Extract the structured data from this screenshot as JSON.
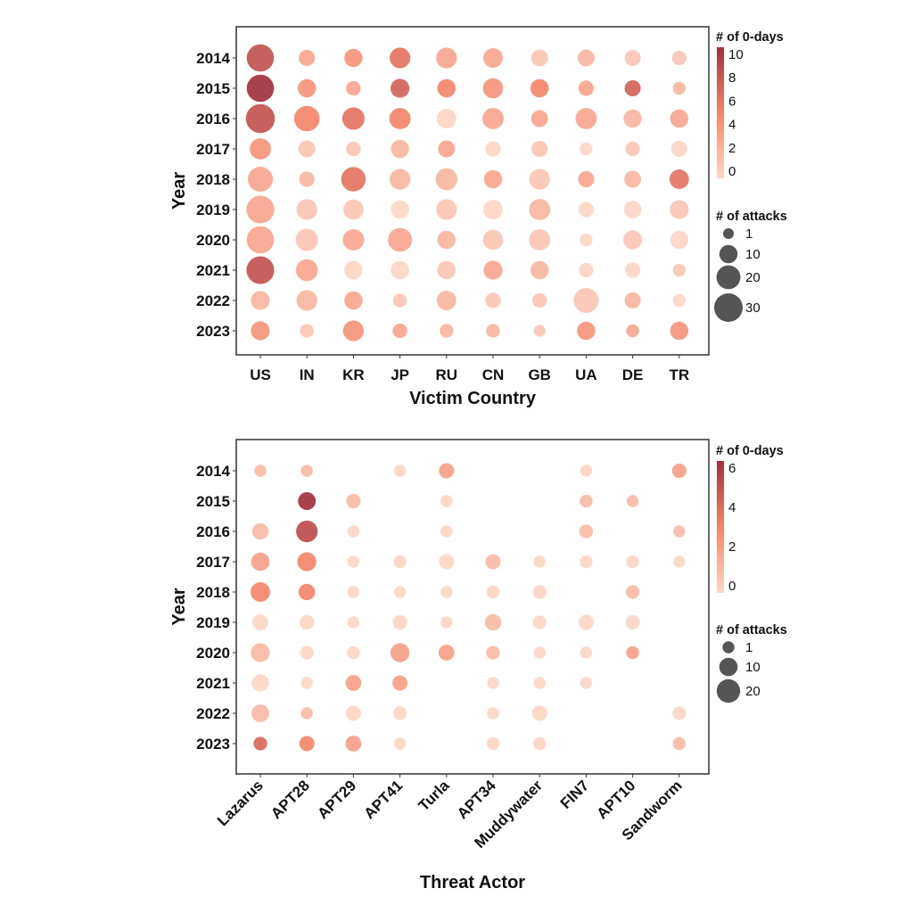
{
  "chart_data": [
    {
      "type": "scatter",
      "subtype": "bubble",
      "xlabel": "Victim Country",
      "ylabel": "Year",
      "categories": [
        "US",
        "IN",
        "KR",
        "JP",
        "RU",
        "CN",
        "GB",
        "UA",
        "DE",
        "TR"
      ],
      "years": [
        "2014",
        "2015",
        "2016",
        "2017",
        "2018",
        "2019",
        "2020",
        "2021",
        "2022",
        "2023"
      ],
      "attacks": [
        [
          27,
          7,
          10,
          14,
          14,
          12,
          8,
          8,
          7,
          5
        ],
        [
          27,
          10,
          5,
          11,
          10,
          13,
          10,
          6,
          7,
          3
        ],
        [
          31,
          23,
          17,
          15,
          12,
          15,
          8,
          15,
          10,
          10
        ],
        [
          15,
          8,
          5,
          10,
          8,
          6,
          7,
          3,
          5,
          7
        ],
        [
          22,
          6,
          21,
          14,
          16,
          10,
          14,
          7,
          8,
          12
        ],
        [
          28,
          14,
          13,
          10,
          14,
          12,
          15,
          6,
          9,
          11
        ],
        [
          27,
          17,
          15,
          20,
          10,
          13,
          15,
          3,
          11,
          10
        ],
        [
          28,
          16,
          10,
          10,
          10,
          11,
          10,
          5,
          6,
          3
        ],
        [
          11,
          14,
          10,
          4,
          12,
          6,
          5,
          22,
          7,
          3
        ],
        [
          11,
          4,
          14,
          5,
          4,
          4,
          2,
          10,
          3,
          10
        ]
      ],
      "zero_days": [
        [
          8,
          3,
          4,
          6,
          3,
          3,
          1,
          2,
          1,
          1
        ],
        [
          10,
          4,
          3,
          7,
          5,
          4,
          5,
          3,
          7,
          2
        ],
        [
          8,
          5,
          6,
          5,
          0,
          3,
          3,
          3,
          2,
          3
        ],
        [
          4,
          1,
          1,
          2,
          3,
          0,
          1,
          0,
          1,
          0
        ],
        [
          3,
          2,
          6,
          2,
          2,
          3,
          1,
          3,
          2,
          6
        ],
        [
          3,
          1,
          1,
          0,
          1,
          0,
          2,
          0,
          0,
          1
        ],
        [
          3,
          1,
          3,
          3,
          2,
          1,
          1,
          0,
          1,
          0
        ],
        [
          8,
          3,
          0,
          0,
          1,
          3,
          2,
          0,
          0,
          1
        ],
        [
          2,
          2,
          3,
          1,
          2,
          1,
          1,
          1,
          2,
          0
        ],
        [
          4,
          1,
          4,
          3,
          2,
          2,
          1,
          4,
          3,
          4
        ]
      ],
      "color_legend": {
        "title": "# of 0-days",
        "ticks": [
          "0",
          "2",
          "4",
          "6",
          "8",
          "10"
        ],
        "range": [
          0,
          10
        ]
      },
      "size_legend": {
        "title": "# of attacks",
        "values": [
          1,
          10,
          20,
          30
        ],
        "labels": [
          "1",
          "10",
          "20",
          "30"
        ]
      },
      "colors": {
        "low": "#fdd6c6",
        "mid": "#f4856a",
        "high": "#a2303e"
      },
      "legend_position": "right"
    },
    {
      "type": "scatter",
      "subtype": "bubble",
      "xlabel": "Threat Actor",
      "ylabel": "Year",
      "categories": [
        "Lazarus",
        "APT28",
        "APT29",
        "APT41",
        "Turla",
        "APT34",
        "Muddywater",
        "FIN7",
        "APT10",
        "Sandworm"
      ],
      "years": [
        "2014",
        "2015",
        "2016",
        "2017",
        "2018",
        "2019",
        "2020",
        "2021",
        "2022",
        "2023"
      ],
      "attacks": [
        [
          1,
          1,
          null,
          1,
          5,
          null,
          null,
          1,
          null,
          4
        ],
        [
          null,
          9,
          4,
          null,
          1,
          null,
          null,
          2,
          1,
          null
        ],
        [
          7,
          16,
          1,
          null,
          1,
          null,
          null,
          3,
          null,
          1
        ],
        [
          10,
          11,
          1,
          2,
          5,
          5,
          1,
          2,
          2,
          1
        ],
        [
          12,
          7,
          1,
          1,
          1,
          2,
          3,
          null,
          3,
          null
        ],
        [
          6,
          4,
          1,
          4,
          1,
          7,
          3,
          5,
          4,
          null
        ],
        [
          11,
          3,
          2,
          11,
          6,
          3,
          1,
          1,
          2,
          null
        ],
        [
          8,
          1,
          6,
          5,
          null,
          1,
          1,
          1,
          null,
          null
        ],
        [
          9,
          1,
          5,
          3,
          null,
          1,
          5,
          null,
          null,
          3
        ],
        [
          3,
          5,
          6,
          1,
          null,
          2,
          2,
          null,
          null,
          2
        ]
      ],
      "zero_days": [
        [
          1,
          1,
          null,
          0,
          2,
          null,
          null,
          0,
          null,
          2
        ],
        [
          null,
          6,
          1,
          null,
          0,
          null,
          null,
          1,
          1,
          null
        ],
        [
          1,
          5,
          0,
          null,
          0,
          null,
          null,
          1,
          null,
          1
        ],
        [
          2,
          3,
          0,
          0,
          0,
          1,
          0,
          0,
          0,
          0
        ],
        [
          3,
          3,
          0,
          0,
          0,
          0,
          0,
          null,
          1,
          null
        ],
        [
          0,
          0,
          0,
          0,
          0,
          1,
          0,
          0,
          0,
          null
        ],
        [
          1,
          0,
          0,
          2,
          2,
          1,
          0,
          0,
          2,
          null
        ],
        [
          0,
          0,
          2,
          2,
          null,
          0,
          0,
          0,
          null,
          null
        ],
        [
          1,
          1,
          0,
          0,
          null,
          0,
          0,
          null,
          null,
          0
        ],
        [
          4,
          3,
          2,
          0,
          null,
          0,
          0,
          null,
          null,
          1
        ]
      ],
      "color_legend": {
        "title": "# of 0-days",
        "ticks": [
          "0",
          "2",
          "4",
          "6"
        ],
        "range": [
          0,
          6
        ]
      },
      "size_legend": {
        "title": "# of attacks",
        "values": [
          1,
          10,
          20
        ],
        "labels": [
          "1",
          "10",
          "20"
        ]
      },
      "colors": {
        "low": "#fdd6c6",
        "mid": "#f4856a",
        "high": "#a2303e"
      },
      "legend_position": "right"
    }
  ]
}
